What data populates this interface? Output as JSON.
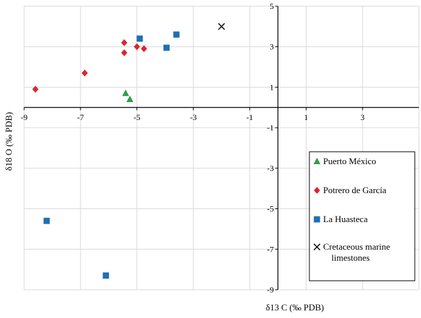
{
  "chart_data": {
    "type": "scatter",
    "title": "",
    "xlabel": "δ13 C (‰ PDB)",
    "ylabel": "δ18 O (‰ PDB)",
    "xlim": [
      -9,
      5
    ],
    "ylim": [
      -9,
      5
    ],
    "x_ticks": [
      -9,
      -7,
      -5,
      -3,
      -1,
      1,
      3
    ],
    "y_ticks": [
      5,
      3,
      1,
      -1,
      -3,
      -5,
      -7,
      -9
    ],
    "grid": true,
    "legend_position": "lower-right",
    "series": [
      {
        "name": "Puerto México",
        "marker": "triangle",
        "color": "#2e9e4a",
        "points": [
          [
            -5.4,
            0.7
          ],
          [
            -5.25,
            0.4
          ]
        ]
      },
      {
        "name": "Potrero de García",
        "marker": "diamond",
        "color": "#e0242b",
        "points": [
          [
            -8.6,
            0.9
          ],
          [
            -6.85,
            1.7
          ],
          [
            -5.45,
            3.2
          ],
          [
            -5.45,
            2.7
          ],
          [
            -5.0,
            3.0
          ],
          [
            -4.75,
            2.9
          ]
        ]
      },
      {
        "name": "La Huasteca",
        "marker": "square",
        "color": "#1f6fb5",
        "points": [
          [
            -4.9,
            3.4
          ],
          [
            -3.6,
            3.6
          ],
          [
            -3.95,
            2.95
          ],
          [
            -8.2,
            -5.6
          ],
          [
            -6.1,
            -8.3
          ]
        ]
      },
      {
        "name": "Cretaceous marine limestones",
        "name_lines": [
          "Cretaceous marine",
          "limestones"
        ],
        "marker": "x",
        "color": "#000000",
        "points": [
          [
            -2.0,
            4.0
          ]
        ]
      }
    ]
  }
}
